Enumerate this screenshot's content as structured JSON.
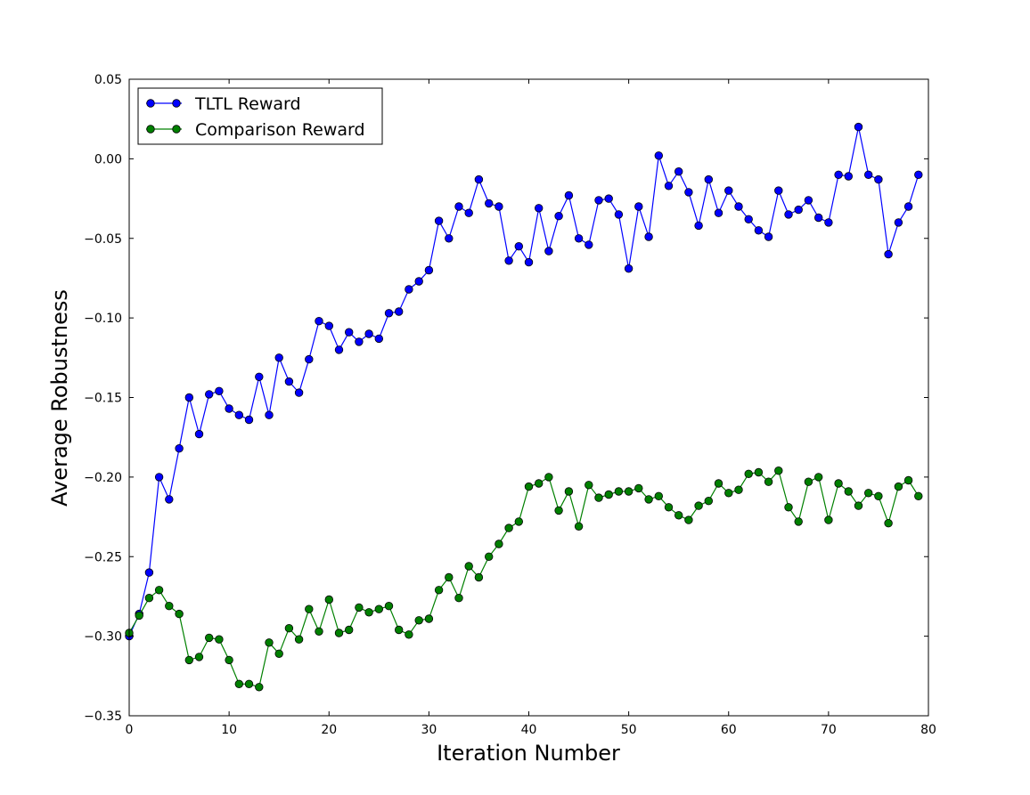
{
  "chart_data": {
    "type": "line",
    "xlabel": "Iteration Number",
    "ylabel": "Average Robustness",
    "xlim": [
      0,
      80
    ],
    "ylim": [
      -0.35,
      0.05
    ],
    "xticks": [
      0,
      10,
      20,
      30,
      40,
      50,
      60,
      70,
      80
    ],
    "xtick_labels": [
      "0",
      "10",
      "20",
      "30",
      "40",
      "50",
      "60",
      "70",
      "80"
    ],
    "yticks": [
      0.05,
      0.0,
      -0.05,
      -0.1,
      -0.15,
      -0.2,
      -0.25,
      -0.3,
      -0.35
    ],
    "ytick_labels": [
      "0.05",
      "0.00",
      "−0.05",
      "−0.10",
      "−0.15",
      "−0.20",
      "−0.25",
      "−0.30",
      "−0.35"
    ],
    "grid": false,
    "legend_position": "top-left",
    "x": [
      0,
      1,
      2,
      3,
      4,
      5,
      6,
      7,
      8,
      9,
      10,
      11,
      12,
      13,
      14,
      15,
      16,
      17,
      18,
      19,
      20,
      21,
      22,
      23,
      24,
      25,
      26,
      27,
      28,
      29,
      30,
      31,
      32,
      33,
      34,
      35,
      36,
      37,
      38,
      39,
      40,
      41,
      42,
      43,
      44,
      45,
      46,
      47,
      48,
      49,
      50,
      51,
      52,
      53,
      54,
      55,
      56,
      57,
      58,
      59,
      60,
      61,
      62,
      63,
      64,
      65,
      66,
      67,
      68,
      69,
      70,
      71,
      72,
      73,
      74,
      75,
      76,
      77,
      78,
      79
    ],
    "series": [
      {
        "name": "TLTL Reward",
        "color": "#0000ff",
        "values": [
          -0.3,
          -0.286,
          -0.26,
          -0.2,
          -0.214,
          -0.182,
          -0.15,
          -0.173,
          -0.148,
          -0.146,
          -0.157,
          -0.161,
          -0.164,
          -0.137,
          -0.161,
          -0.125,
          -0.14,
          -0.147,
          -0.126,
          -0.102,
          -0.105,
          -0.12,
          -0.109,
          -0.115,
          -0.11,
          -0.113,
          -0.097,
          -0.096,
          -0.082,
          -0.077,
          -0.07,
          -0.039,
          -0.05,
          -0.03,
          -0.034,
          -0.013,
          -0.028,
          -0.03,
          -0.064,
          -0.055,
          -0.065,
          -0.031,
          -0.058,
          -0.036,
          -0.023,
          -0.05,
          -0.054,
          -0.026,
          -0.025,
          -0.035,
          -0.069,
          -0.03,
          -0.049,
          0.002,
          -0.017,
          -0.008,
          -0.021,
          -0.042,
          -0.013,
          -0.034,
          -0.02,
          -0.03,
          -0.038,
          -0.045,
          -0.049,
          -0.02,
          -0.035,
          -0.032,
          -0.026,
          -0.037,
          -0.04,
          -0.01,
          -0.011,
          0.02,
          -0.01,
          -0.013,
          -0.06,
          -0.04,
          -0.03,
          -0.01
        ]
      },
      {
        "name": "Comparison Reward",
        "color": "#008000",
        "values": [
          -0.298,
          -0.287,
          -0.276,
          -0.271,
          -0.281,
          -0.286,
          -0.315,
          -0.313,
          -0.301,
          -0.302,
          -0.315,
          -0.33,
          -0.33,
          -0.332,
          -0.304,
          -0.311,
          -0.295,
          -0.302,
          -0.283,
          -0.297,
          -0.277,
          -0.298,
          -0.296,
          -0.282,
          -0.285,
          -0.283,
          -0.281,
          -0.296,
          -0.299,
          -0.29,
          -0.289,
          -0.271,
          -0.263,
          -0.276,
          -0.256,
          -0.263,
          -0.25,
          -0.242,
          -0.232,
          -0.228,
          -0.206,
          -0.204,
          -0.2,
          -0.221,
          -0.209,
          -0.231,
          -0.205,
          -0.213,
          -0.211,
          -0.209,
          -0.209,
          -0.207,
          -0.214,
          -0.212,
          -0.219,
          -0.224,
          -0.227,
          -0.218,
          -0.215,
          -0.204,
          -0.21,
          -0.208,
          -0.198,
          -0.197,
          -0.203,
          -0.196,
          -0.219,
          -0.228,
          -0.203,
          -0.2,
          -0.227,
          -0.204,
          -0.209,
          -0.218,
          -0.21,
          -0.212,
          -0.229,
          -0.206,
          -0.202,
          -0.212
        ]
      }
    ]
  }
}
